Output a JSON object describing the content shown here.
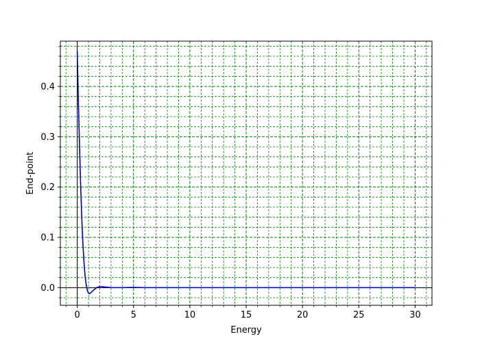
{
  "chart_data": {
    "type": "line",
    "xlabel": "Energy",
    "ylabel": "End-point",
    "xlim": [
      -1.5,
      31.5
    ],
    "ylim": [
      -0.035,
      0.49
    ],
    "x_ticks": [
      0,
      5,
      10,
      15,
      20,
      25,
      30
    ],
    "x_tick_labels": [
      "0",
      "5",
      "10",
      "15",
      "20",
      "25",
      "30"
    ],
    "y_ticks": [
      0.0,
      0.1,
      0.2,
      0.3,
      0.4
    ],
    "y_tick_labels": [
      "0.0",
      "0.1",
      "0.2",
      "0.3",
      "0.4"
    ],
    "grid": true,
    "grid_style": "dashed",
    "grid_minor": true,
    "grid_color": "#008000",
    "reference_lines": {
      "x": 0,
      "y": 0,
      "color": "#000000"
    },
    "series": [
      {
        "color": "#0000cc",
        "x": [
          0.0,
          0.1,
          0.2,
          0.3,
          0.4,
          0.5,
          0.6,
          0.7,
          0.8,
          0.9,
          1.0,
          1.1,
          1.2,
          1.4,
          1.6,
          1.8,
          2.0,
          2.2,
          2.4,
          2.6,
          2.8,
          3.0,
          3.5,
          4.0,
          5.0,
          6.0,
          8.0,
          10.0,
          15.0,
          20.0,
          25.0,
          30.0
        ],
        "y": [
          0.47,
          0.37,
          0.285,
          0.205,
          0.14,
          0.088,
          0.05,
          0.022,
          0.005,
          -0.006,
          -0.011,
          -0.012,
          -0.01,
          -0.006,
          -0.002,
          0.001,
          0.002,
          0.002,
          0.0015,
          0.001,
          0.0005,
          0.0,
          0.0,
          0.0,
          0.0005,
          0.0,
          0.0,
          0.0,
          0.0,
          0.0,
          0.0,
          0.0
        ]
      }
    ]
  }
}
